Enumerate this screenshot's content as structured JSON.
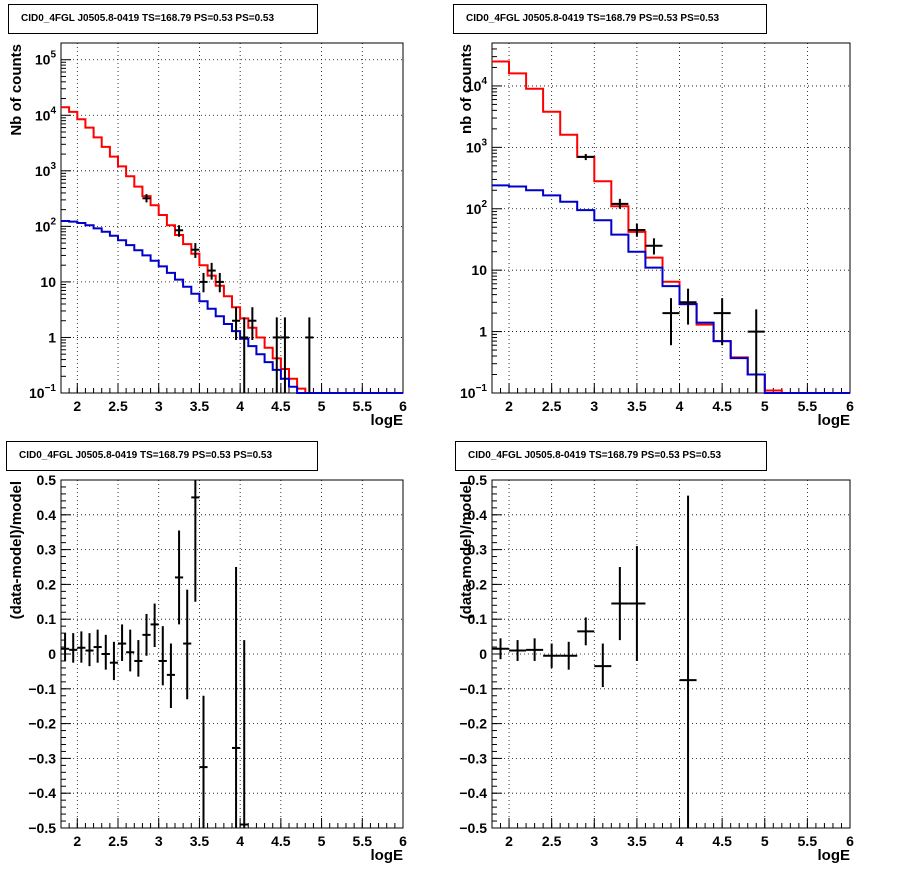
{
  "chart_data": [
    {
      "id": "counts-left",
      "type": "line",
      "title": "CID0_4FGL J0505.8-0419 TS=168.79 PS=0.53 PS=0.53",
      "xlabel": "logE",
      "ylabel": "Nb of counts",
      "xlim": [
        1.8,
        6.0
      ],
      "ylim": [
        0.1,
        200000
      ],
      "yscale": "log",
      "grid": true,
      "xticks": [
        "2",
        "2.5",
        "3",
        "3.5",
        "4",
        "4.5",
        "5",
        "5.5",
        "6"
      ],
      "yticks": [
        {
          "v": 0.1,
          "b": "10",
          "e": "−1"
        },
        {
          "v": 1,
          "t": "1"
        },
        {
          "v": 10,
          "t": "10"
        },
        {
          "v": 100,
          "b": "10",
          "e": "2"
        },
        {
          "v": 1000,
          "b": "10",
          "e": "3"
        },
        {
          "v": 10000,
          "b": "10",
          "e": "4"
        },
        {
          "v": 100000,
          "b": "10",
          "e": "5"
        }
      ],
      "series": [
        {
          "color": "#ff0000",
          "step": true,
          "edges": [
            1.8,
            1.9,
            2.0,
            2.1,
            2.2,
            2.3,
            2.4,
            2.5,
            2.6,
            2.7,
            2.8,
            2.9,
            3.0,
            3.1,
            3.2,
            3.3,
            3.4,
            3.5,
            3.6,
            3.7,
            3.8,
            3.9,
            4.0,
            4.1,
            4.2,
            4.3,
            4.4,
            4.5,
            4.6,
            4.7,
            4.8,
            4.9,
            5.0,
            5.1,
            5.2,
            5.3,
            5.4,
            5.5,
            5.6,
            5.7,
            5.8,
            5.9,
            6.0
          ],
          "values": [
            14000,
            11500,
            8500,
            6000,
            4000,
            2700,
            1800,
            1200,
            800,
            520,
            350,
            240,
            160,
            105,
            70,
            48,
            32,
            20,
            13,
            8.5,
            5.5,
            3.5,
            2.2,
            1.5,
            1.0,
            0.65,
            0.42,
            0.27,
            0.18,
            0.12,
            0.1,
            0.1,
            0.1,
            0.1,
            0.1,
            0.1,
            0.1,
            0.1,
            0.1,
            0.1,
            0.1,
            0.1
          ]
        },
        {
          "color": "#0000cc",
          "step": true,
          "edges": [
            1.8,
            1.9,
            2.0,
            2.1,
            2.2,
            2.3,
            2.4,
            2.5,
            2.6,
            2.7,
            2.8,
            2.9,
            3.0,
            3.1,
            3.2,
            3.3,
            3.4,
            3.5,
            3.6,
            3.7,
            3.8,
            3.9,
            4.0,
            4.1,
            4.2,
            4.3,
            4.4,
            4.5,
            4.6,
            4.7,
            4.8,
            4.9,
            5.0,
            5.1,
            5.2,
            5.3,
            5.4,
            5.5,
            5.6,
            5.7,
            5.8,
            5.9,
            6.0
          ],
          "values": [
            125,
            122,
            115,
            105,
            92,
            80,
            68,
            56,
            46,
            37,
            30,
            24,
            19,
            14.5,
            11,
            8.2,
            6.1,
            4.5,
            3.3,
            2.4,
            1.75,
            1.3,
            0.95,
            0.7,
            0.5,
            0.36,
            0.26,
            0.18,
            0.13,
            0.1,
            0.1,
            0.1,
            0.1,
            0.1,
            0.1,
            0.1,
            0.1,
            0.1,
            0.1,
            0.1,
            0.1,
            0.1
          ]
        }
      ],
      "points": [
        {
          "x": 2.85,
          "y": 320,
          "lo": 270,
          "hi": 380,
          "xerr": 0.05
        },
        {
          "x": 3.25,
          "y": 85,
          "lo": 65,
          "hi": 105,
          "xerr": 0.05
        },
        {
          "x": 3.45,
          "y": 38,
          "lo": 27,
          "hi": 50,
          "xerr": 0.05
        },
        {
          "x": 3.55,
          "y": 10,
          "lo": 6.5,
          "hi": 14.5,
          "xerr": 0.05
        },
        {
          "x": 3.65,
          "y": 16,
          "lo": 11,
          "hi": 22,
          "xerr": 0.05
        },
        {
          "x": 3.75,
          "y": 10,
          "lo": 6.5,
          "hi": 14.5,
          "xerr": 0.05
        },
        {
          "x": 3.95,
          "y": 2,
          "lo": 0.9,
          "hi": 3.5,
          "xerr": 0.05
        },
        {
          "x": 4.05,
          "y": 1,
          "lo": 0.1,
          "hi": 2.3,
          "xerr": 0.05
        },
        {
          "x": 4.15,
          "y": 2,
          "lo": 0.9,
          "hi": 3.5,
          "xerr": 0.05
        },
        {
          "x": 4.45,
          "y": 1,
          "lo": 0.1,
          "hi": 2.3,
          "xerr": 0.05
        },
        {
          "x": 4.55,
          "y": 1,
          "lo": 0.1,
          "hi": 2.3,
          "xerr": 0.05
        },
        {
          "x": 4.85,
          "y": 1,
          "lo": 0.1,
          "hi": 2.3,
          "xerr": 0.05
        }
      ]
    },
    {
      "id": "counts-right",
      "type": "line",
      "title": "CID0_4FGL J0505.8-0419 TS=168.79 PS=0.53 PS=0.53",
      "xlabel": "logE",
      "ylabel": "nb of counts",
      "xlim": [
        1.8,
        6.0
      ],
      "ylim": [
        0.1,
        50000
      ],
      "yscale": "log",
      "grid": true,
      "xticks": [
        "2",
        "2.5",
        "3",
        "3.5",
        "4",
        "4.5",
        "5",
        "5.5",
        "6"
      ],
      "yticks": [
        {
          "v": 0.1,
          "b": "10",
          "e": "−1"
        },
        {
          "v": 1,
          "t": "1"
        },
        {
          "v": 10,
          "t": "10"
        },
        {
          "v": 100,
          "b": "10",
          "e": "2"
        },
        {
          "v": 1000,
          "b": "10",
          "e": "3"
        },
        {
          "v": 10000,
          "b": "10",
          "e": "4"
        }
      ],
      "series": [
        {
          "color": "#ff0000",
          "step": true,
          "edges": [
            1.8,
            2.0,
            2.2,
            2.4,
            2.6,
            2.8,
            3.0,
            3.2,
            3.4,
            3.6,
            3.8,
            4.0,
            4.2,
            4.4,
            4.6,
            4.8,
            5.0,
            5.2,
            5.4,
            5.6,
            5.8,
            6.0
          ],
          "values": [
            25000,
            16000,
            9000,
            3800,
            1600,
            700,
            280,
            110,
            42,
            16,
            6.5,
            2.8,
            1.3,
            0.7,
            0.38,
            0.2,
            0.11,
            0.1,
            0.1,
            0.1,
            0.1
          ]
        },
        {
          "color": "#0000cc",
          "step": true,
          "edges": [
            1.8,
            2.0,
            2.2,
            2.4,
            2.6,
            2.8,
            3.0,
            3.2,
            3.4,
            3.6,
            3.8,
            4.0,
            4.2,
            4.4,
            4.6,
            4.8,
            5.0,
            5.2,
            5.4,
            5.6,
            5.8,
            6.0
          ],
          "values": [
            240,
            230,
            200,
            165,
            130,
            95,
            65,
            38,
            20,
            11,
            5.5,
            2.8,
            1.4,
            0.7,
            0.37,
            0.2,
            0.1,
            0.1,
            0.1,
            0.1,
            0.1
          ]
        }
      ],
      "points": [
        {
          "x": 2.9,
          "y": 700,
          "lo": 620,
          "hi": 780,
          "xerr": 0.1
        },
        {
          "x": 3.3,
          "y": 120,
          "lo": 100,
          "hi": 145,
          "xerr": 0.1
        },
        {
          "x": 3.5,
          "y": 45,
          "lo": 35,
          "hi": 57,
          "xerr": 0.1
        },
        {
          "x": 3.7,
          "y": 25,
          "lo": 18,
          "hi": 33,
          "xerr": 0.1
        },
        {
          "x": 3.9,
          "y": 2,
          "lo": 0.6,
          "hi": 3.5,
          "xerr": 0.1
        },
        {
          "x": 4.1,
          "y": 3,
          "lo": 1.3,
          "hi": 5.0,
          "xerr": 0.1
        },
        {
          "x": 4.5,
          "y": 2,
          "lo": 0.6,
          "hi": 3.5,
          "xerr": 0.1
        },
        {
          "x": 4.9,
          "y": 1,
          "lo": 0.1,
          "hi": 2.3,
          "xerr": 0.1
        }
      ]
    },
    {
      "id": "residual-left",
      "type": "scatter",
      "title": "CID0_4FGL J0505.8-0419 TS=168.79 PS=0.53 PS=0.53",
      "xlabel": "logE",
      "ylabel": "(data-model)/model",
      "xlim": [
        1.8,
        6.0
      ],
      "ylim": [
        -0.5,
        0.5
      ],
      "yscale": "linear",
      "grid": true,
      "xticks": [
        "2",
        "2.5",
        "3",
        "3.5",
        "4",
        "4.5",
        "5",
        "5.5",
        "6"
      ],
      "yticks": [
        {
          "v": -0.5,
          "t": "−0.5"
        },
        {
          "v": -0.4,
          "t": "−0.4"
        },
        {
          "v": -0.3,
          "t": "−0.3"
        },
        {
          "v": -0.2,
          "t": "−0.2"
        },
        {
          "v": -0.1,
          "t": "−0.1"
        },
        {
          "v": 0,
          "t": "0"
        },
        {
          "v": 0.1,
          "t": "0.1"
        },
        {
          "v": 0.2,
          "t": "0.2"
        },
        {
          "v": 0.3,
          "t": "0.3"
        },
        {
          "v": 0.4,
          "t": "0.4"
        },
        {
          "v": 0.5,
          "t": "0.5"
        }
      ],
      "series": [],
      "points": [
        {
          "x": 1.85,
          "y": 0.015,
          "lo": -0.02,
          "hi": 0.06,
          "xerr": 0.05
        },
        {
          "x": 1.95,
          "y": 0.012,
          "lo": -0.025,
          "hi": 0.06,
          "xerr": 0.05
        },
        {
          "x": 2.05,
          "y": 0.018,
          "lo": -0.025,
          "hi": 0.065,
          "xerr": 0.05
        },
        {
          "x": 2.15,
          "y": 0.01,
          "lo": -0.035,
          "hi": 0.06,
          "xerr": 0.05
        },
        {
          "x": 2.25,
          "y": 0.02,
          "lo": -0.025,
          "hi": 0.07,
          "xerr": 0.05
        },
        {
          "x": 2.35,
          "y": 0.0,
          "lo": -0.045,
          "hi": 0.055,
          "xerr": 0.05
        },
        {
          "x": 2.45,
          "y": -0.025,
          "lo": -0.075,
          "hi": 0.035,
          "xerr": 0.05
        },
        {
          "x": 2.55,
          "y": 0.03,
          "lo": -0.02,
          "hi": 0.085,
          "xerr": 0.05
        },
        {
          "x": 2.65,
          "y": 0.005,
          "lo": -0.05,
          "hi": 0.07,
          "xerr": 0.05
        },
        {
          "x": 2.75,
          "y": -0.02,
          "lo": -0.065,
          "hi": 0.04,
          "xerr": 0.05
        },
        {
          "x": 2.85,
          "y": 0.055,
          "lo": -0.005,
          "hi": 0.115,
          "xerr": 0.05
        },
        {
          "x": 2.95,
          "y": 0.085,
          "lo": 0.02,
          "hi": 0.145,
          "xerr": 0.05
        },
        {
          "x": 3.05,
          "y": -0.02,
          "lo": -0.09,
          "hi": 0.08,
          "xerr": 0.05
        },
        {
          "x": 3.15,
          "y": -0.06,
          "lo": -0.155,
          "hi": 0.03,
          "xerr": 0.05
        },
        {
          "x": 3.25,
          "y": 0.22,
          "lo": 0.085,
          "hi": 0.355,
          "xerr": 0.05
        },
        {
          "x": 3.35,
          "y": 0.03,
          "lo": -0.13,
          "hi": 0.185,
          "xerr": 0.05
        },
        {
          "x": 3.45,
          "y": 0.45,
          "lo": 0.15,
          "hi": 0.5,
          "xerr": 0.05
        },
        {
          "x": 3.55,
          "y": -0.325,
          "lo": -0.5,
          "hi": -0.12,
          "xerr": 0.05
        },
        {
          "x": 3.95,
          "y": -0.27,
          "lo": -0.5,
          "hi": 0.25,
          "xerr": 0.05
        },
        {
          "x": 4.05,
          "y": -0.49,
          "lo": -0.5,
          "hi": 0.04,
          "xerr": 0.05
        }
      ]
    },
    {
      "id": "residual-right",
      "type": "scatter",
      "title": "CID0_4FGL J0505.8-0419 TS=168.79 PS=0.53 PS=0.53",
      "xlabel": "logE",
      "ylabel": "(data-model)/model",
      "xlim": [
        1.8,
        6.0
      ],
      "ylim": [
        -0.5,
        0.5
      ],
      "yscale": "linear",
      "grid": true,
      "xticks": [
        "2",
        "2.5",
        "3",
        "3.5",
        "4",
        "4.5",
        "5",
        "5.5",
        "6"
      ],
      "yticks": [
        {
          "v": -0.5,
          "t": "−0.5"
        },
        {
          "v": -0.4,
          "t": "−0.4"
        },
        {
          "v": -0.3,
          "t": "−0.3"
        },
        {
          "v": -0.2,
          "t": "−0.2"
        },
        {
          "v": -0.1,
          "t": "−0.1"
        },
        {
          "v": 0,
          "t": "0"
        },
        {
          "v": 0.1,
          "t": "0.1"
        },
        {
          "v": 0.2,
          "t": "0.2"
        },
        {
          "v": 0.3,
          "t": "0.3"
        },
        {
          "v": 0.4,
          "t": "0.4"
        },
        {
          "v": 0.5,
          "t": "0.5"
        }
      ],
      "series": [],
      "points": [
        {
          "x": 1.9,
          "y": 0.015,
          "lo": -0.015,
          "hi": 0.045,
          "xerr": 0.1
        },
        {
          "x": 2.1,
          "y": 0.01,
          "lo": -0.02,
          "hi": 0.04,
          "xerr": 0.1
        },
        {
          "x": 2.3,
          "y": 0.012,
          "lo": -0.02,
          "hi": 0.045,
          "xerr": 0.1
        },
        {
          "x": 2.5,
          "y": -0.005,
          "lo": -0.04,
          "hi": 0.03,
          "xerr": 0.1
        },
        {
          "x": 2.7,
          "y": -0.005,
          "lo": -0.045,
          "hi": 0.035,
          "xerr": 0.1
        },
        {
          "x": 2.9,
          "y": 0.065,
          "lo": 0.025,
          "hi": 0.105,
          "xerr": 0.1
        },
        {
          "x": 3.1,
          "y": -0.035,
          "lo": -0.095,
          "hi": 0.03,
          "xerr": 0.1
        },
        {
          "x": 3.3,
          "y": 0.145,
          "lo": 0.04,
          "hi": 0.25,
          "xerr": 0.1
        },
        {
          "x": 3.5,
          "y": 0.145,
          "lo": -0.02,
          "hi": 0.31,
          "xerr": 0.1
        },
        {
          "x": 4.1,
          "y": -0.075,
          "lo": -0.5,
          "hi": 0.455,
          "xerr": 0.1
        }
      ]
    }
  ]
}
